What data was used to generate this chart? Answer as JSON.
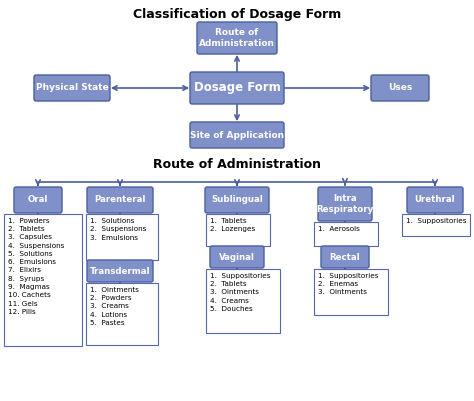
{
  "title1": "Classification of Dosage Form",
  "title2": "Route of Administration",
  "box_color": "#7b8fc7",
  "box_edge": "#4a5fa0",
  "list_edge": "#666688",
  "center_box": "Dosage Form",
  "top_box": "Route of\nAdministration",
  "left_box": "Physical State",
  "right_box": "Uses",
  "bottom_box": "Site of Application",
  "route_nodes": [
    "Oral",
    "Parenteral",
    "Sublingual",
    "Intra\nRespiratory",
    "Urethral"
  ],
  "oral_items": [
    "1.  Powders",
    "2.  Tablets",
    "3.  Capsules",
    "4.  Suspensions",
    "5.  Solutions",
    "6.  Emulsions",
    "7.  Elixirs",
    "8.  Syrups",
    "9.  Magmas",
    "10. Cachets",
    "11. Gels",
    "12. Pills"
  ],
  "parenteral_items": [
    "1.  Solutions",
    "2.  Suspensions",
    "3.  Emulsions"
  ],
  "transdermal_items": [
    "1.  Ointments",
    "2.  Powders",
    "3.  Creams",
    "4.  Lotions",
    "5.  Pastes"
  ],
  "sublingual_items": [
    "1.  Tablets",
    "2.  Lozenges"
  ],
  "vaginal_items": [
    "1.  Suppositories",
    "2.  Tablets",
    "3.  Ointments",
    "4.  Creams",
    "5.  Douches"
  ],
  "intrarespiratory_items": [
    "1.  Aerosols"
  ],
  "rectal_items": [
    "1.  Suppositories",
    "2.  Enemas",
    "3.  Ointments"
  ],
  "urethral_items": [
    "1.  Suppositories"
  ]
}
